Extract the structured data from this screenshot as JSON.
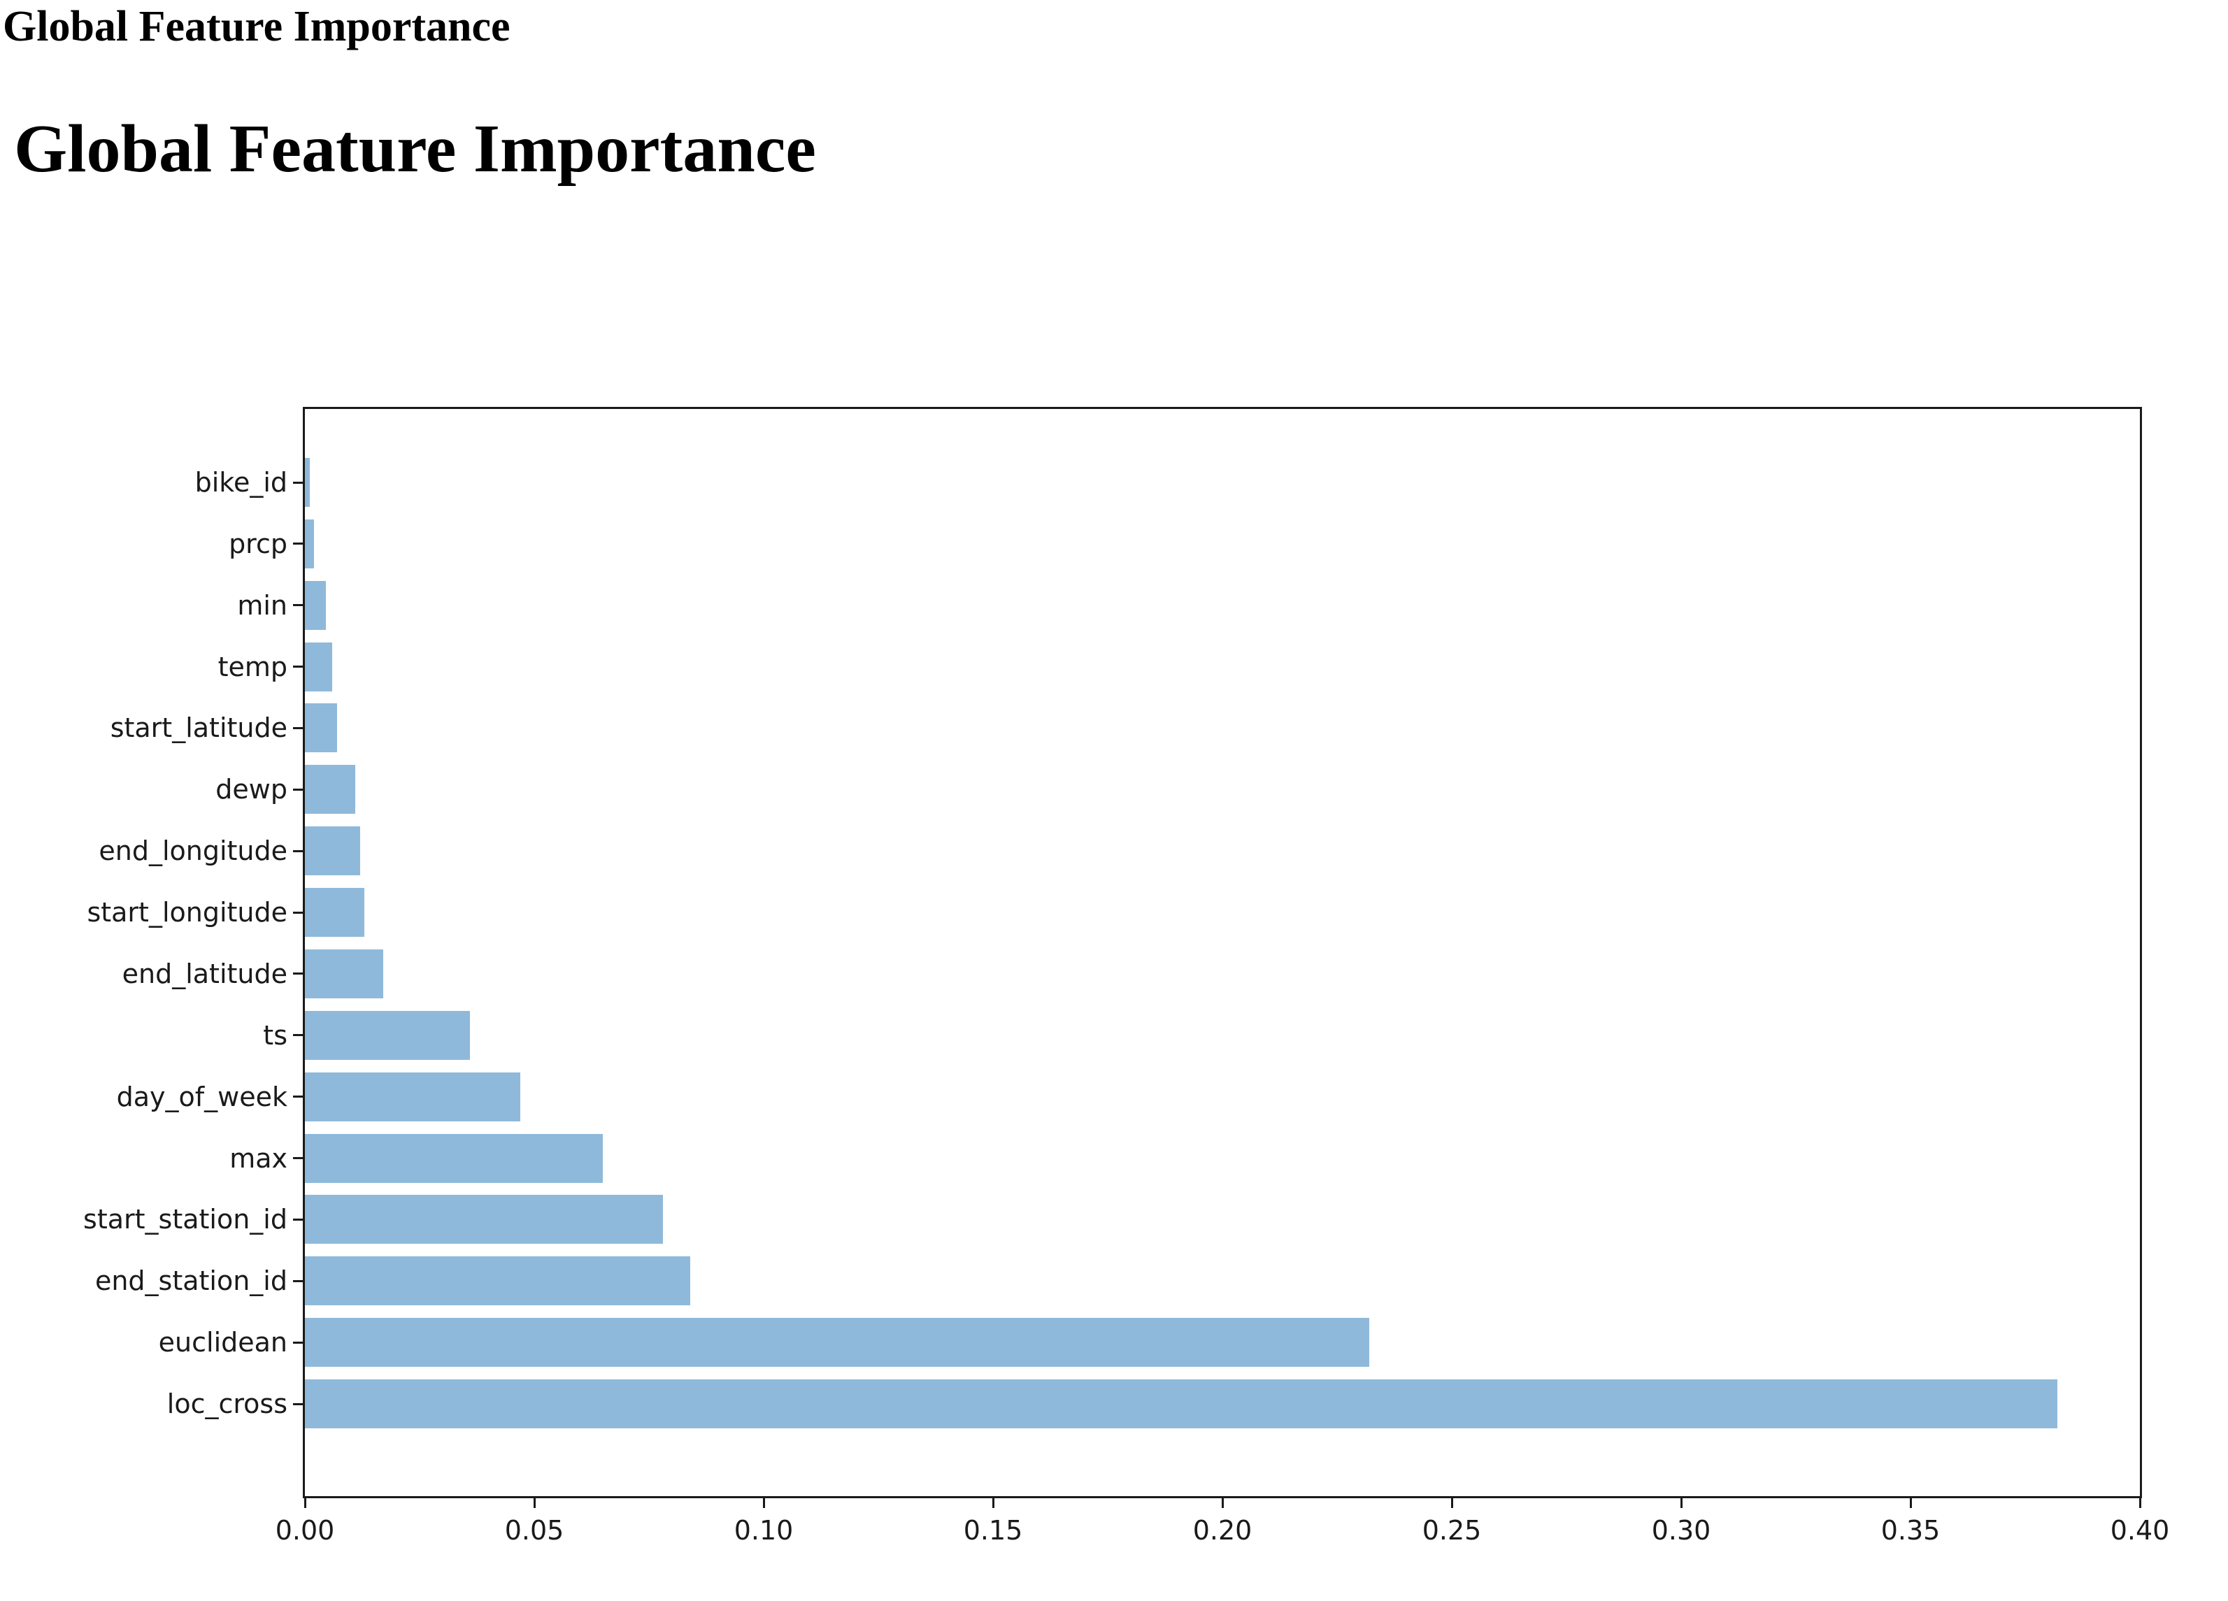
{
  "page": {
    "small_title": "Global Feature Importance",
    "heading": "Global Feature Importance"
  },
  "chart_data": {
    "type": "bar",
    "orientation": "horizontal",
    "title": "",
    "xlabel": "",
    "ylabel": "",
    "categories": [
      "bike_id",
      "prcp",
      "min",
      "temp",
      "start_latitude",
      "dewp",
      "end_longitude",
      "start_longitude",
      "end_latitude",
      "ts",
      "day_of_week",
      "max",
      "start_station_id",
      "end_station_id",
      "euclidean",
      "loc_cross"
    ],
    "values": [
      0.001,
      0.002,
      0.0045,
      0.006,
      0.007,
      0.011,
      0.012,
      0.013,
      0.017,
      0.036,
      0.047,
      0.065,
      0.078,
      0.084,
      0.232,
      0.382
    ],
    "xlim": [
      0,
      0.4
    ],
    "xtick_labels": [
      "0.00",
      "0.05",
      "0.10",
      "0.15",
      "0.20",
      "0.25",
      "0.30",
      "0.35",
      "0.40"
    ],
    "xticks": [
      0.0,
      0.05,
      0.1,
      0.15,
      0.2,
      0.25,
      0.3,
      0.35,
      0.4
    ],
    "bar_color": "#8fb9da",
    "axis_color": "#1a1a1a",
    "grid": false,
    "legend_position": "none"
  }
}
